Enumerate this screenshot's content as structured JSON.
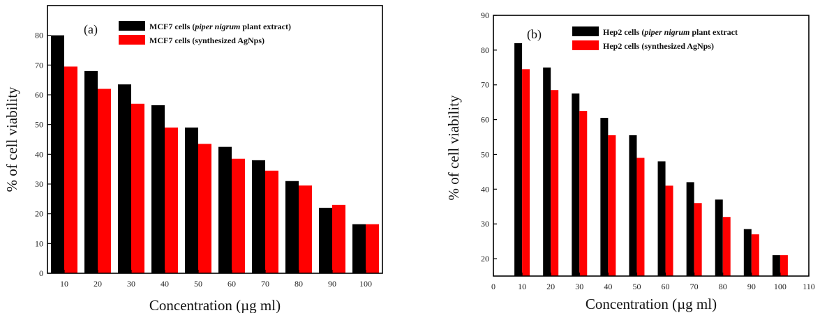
{
  "chart_data": [
    {
      "type": "bar",
      "panel_label": "(a)",
      "xlabel": "Concentration (µg ml)",
      "ylabel": "% of cell viability",
      "categories": [
        "10",
        "20",
        "30",
        "40",
        "50",
        "60",
        "70",
        "80",
        "90",
        "100"
      ],
      "ylim": [
        0,
        90
      ],
      "yticks": [
        0,
        10,
        20,
        30,
        40,
        50,
        60,
        70,
        80
      ],
      "legend_position": "top-right",
      "grid": false,
      "series": [
        {
          "name": "MCF7 cells (piper nigrum plant extract)",
          "name_parts": [
            "MCF7 cells (",
            "piper nigrum",
            " plant extract)"
          ],
          "color": "#000000",
          "values": [
            80,
            68,
            63.5,
            56.5,
            49,
            42.5,
            38,
            31,
            22,
            16.5
          ]
        },
        {
          "name": "MCF7 cells (synthesized AgNps)",
          "name_parts": [
            "MCF7 cells (synthesized AgNps)"
          ],
          "color": "#ff0000",
          "values": [
            69.5,
            62,
            57,
            49,
            43.5,
            38.5,
            34.5,
            29.5,
            23,
            16.5
          ]
        }
      ]
    },
    {
      "type": "bar",
      "panel_label": "(b)",
      "xlabel": "Concentration (µg ml)",
      "ylabel": "% of cell viability",
      "x_numeric": true,
      "x": [
        10,
        20,
        30,
        40,
        50,
        60,
        70,
        80,
        90,
        100
      ],
      "xlim": [
        0,
        110
      ],
      "xticks": [
        0,
        10,
        20,
        30,
        40,
        50,
        60,
        70,
        80,
        90,
        100,
        110
      ],
      "ylim": [
        15,
        90
      ],
      "yticks": [
        20,
        30,
        40,
        50,
        60,
        70,
        80,
        90
      ],
      "legend_position": "top-right",
      "grid": false,
      "series": [
        {
          "name": "Hep2 cells (piper nigrum plant extract)",
          "name_parts": [
            "Hep2 cells (",
            "piper nigrum",
            " plant extract"
          ],
          "color": "#000000",
          "values": [
            82,
            75,
            67.5,
            60.5,
            55.5,
            48,
            42,
            37,
            28.5,
            21
          ]
        },
        {
          "name": "Hep2 cells (synthesized AgNps)",
          "name_parts": [
            "Hep2 cells (synthesized AgNps)"
          ],
          "color": "#ff0000",
          "values": [
            74.5,
            68.5,
            62.5,
            55.5,
            49,
            41,
            36,
            32,
            27,
            21
          ]
        }
      ]
    }
  ]
}
